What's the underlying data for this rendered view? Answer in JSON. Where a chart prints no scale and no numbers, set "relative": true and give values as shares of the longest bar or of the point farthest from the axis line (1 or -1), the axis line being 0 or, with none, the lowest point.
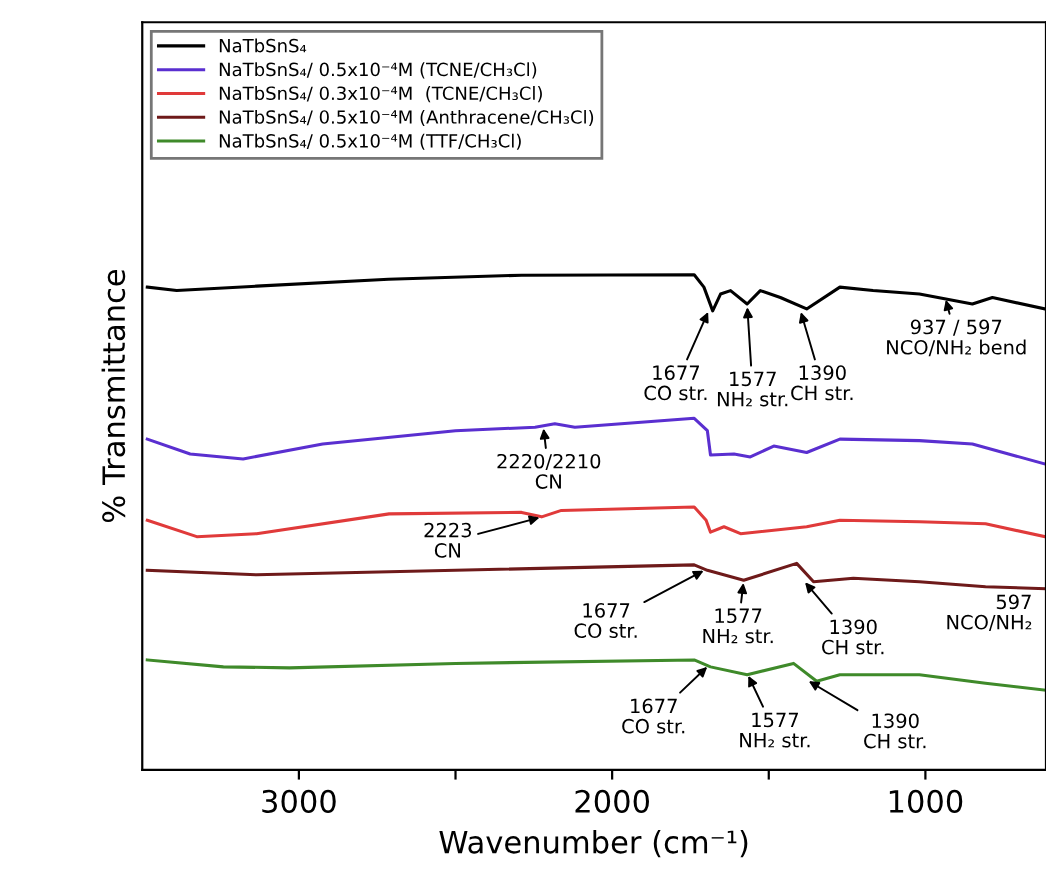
{
  "chart_data": {
    "type": "line",
    "relative": true,
    "xlabel": "Wavenumber (cm⁻¹)",
    "ylabel": "% Transmittance",
    "xlim": [
      3500,
      615
    ],
    "xticks": [
      3000,
      {
        "value": 2500,
        "label": null
      },
      2000,
      {
        "value": 1500,
        "label": null
      },
      1000
    ],
    "legend": "top left",
    "grid": false,
    "marker": "none",
    "line_style": "solid",
    "tick_labels": "x",
    "series": [
      {
        "name": "NaTbSnS₄",
        "color": "#000000",
        "x": [
          3484,
          3390,
          3135,
          2714,
          2289,
          1738,
          1707,
          1679,
          1654,
          1622,
          1569,
          1527,
          1463,
          1379,
          1273,
          1167,
          1019,
          850,
          786,
          619
        ],
        "values": [
          0.975,
          0.968,
          0.977,
          0.991,
          0.999,
          1.0,
          0.975,
          0.927,
          0.961,
          0.968,
          0.941,
          0.968,
          0.954,
          0.931,
          0.975,
          0.968,
          0.961,
          0.941,
          0.954,
          0.931
        ]
      },
      {
        "name": "NaTbSnS₄/ 0.5x10⁻⁴M (TCNE/CH₃Cl)",
        "color": "#5a2fd0",
        "x": [
          3484,
          3347,
          3178,
          2924,
          2500,
          2246,
          2183,
          2119,
          1738,
          1696,
          1686,
          1611,
          1559,
          1484,
          1379,
          1273,
          1019,
          850,
          619
        ],
        "values": [
          0.668,
          0.638,
          0.628,
          0.658,
          0.685,
          0.692,
          0.699,
          0.692,
          0.71,
          0.685,
          0.636,
          0.638,
          0.632,
          0.654,
          0.641,
          0.668,
          0.665,
          0.658,
          0.618
        ]
      },
      {
        "name": "NaTbSnS₄/ 0.3x10⁻⁴M  (TCNE/CH₃Cl)",
        "color": "#e03a3a",
        "x": [
          3484,
          3326,
          3135,
          2712,
          2289,
          2225,
          2162,
          1738,
          1700,
          1686,
          1643,
          1590,
          1379,
          1273,
          1019,
          808,
          619
        ],
        "values": [
          0.504,
          0.471,
          0.477,
          0.517,
          0.52,
          0.511,
          0.524,
          0.531,
          0.504,
          0.48,
          0.491,
          0.477,
          0.491,
          0.504,
          0.501,
          0.497,
          0.471
        ]
      },
      {
        "name": "NaTbSnS₄/ 0.5x10⁻⁴M (Anthracene/CH₃Cl)",
        "color": "#6e1a1a",
        "x": [
          3484,
          3135,
          2500,
          1738,
          1696,
          1580,
          1411,
          1357,
          1230,
          1019,
          808,
          619
        ],
        "values": [
          0.403,
          0.394,
          0.403,
          0.414,
          0.403,
          0.383,
          0.417,
          0.38,
          0.387,
          0.38,
          0.37,
          0.366
        ]
      },
      {
        "name": "NaTbSnS₄/ 0.5x10⁻⁴M (TTF/CH₃Cl)",
        "color": "#3f8a2a",
        "x": [
          3484,
          3241,
          3030,
          2500,
          1738,
          1686,
          1569,
          1421,
          1347,
          1273,
          1019,
          808,
          619
        ],
        "values": [
          0.222,
          0.208,
          0.206,
          0.215,
          0.222,
          0.208,
          0.192,
          0.215,
          0.179,
          0.192,
          0.192,
          0.175,
          0.161
        ]
      }
    ],
    "annotations": [
      {
        "text": "1677\nCO str.",
        "x": 1690,
        "y": 0.93
      },
      {
        "text": "1577\nNH₂ str.",
        "x": 1569,
        "y": 0.94
      },
      {
        "text": "1390\nCH str.",
        "x": 1400,
        "y": 0.93
      },
      {
        "text": "937 / 597\nNCO/NH₂ bend",
        "x": 937,
        "y": 0.955
      },
      {
        "text": "2220/2210\nCN",
        "x": 2220,
        "y": 0.695
      },
      {
        "text": "2223\nCN",
        "x": 2223,
        "y": 0.511
      },
      {
        "text": "1677\nCO str.",
        "x": 1700,
        "y": 0.405
      },
      {
        "text": "1577\nNH₂ str.",
        "x": 1580,
        "y": 0.383
      },
      {
        "text": "1390\nCH str.",
        "x": 1390,
        "y": 0.383
      },
      "597\nNCO/NH₂",
      {
        "text": "1677\nCO str.",
        "x": 1690,
        "y": 0.212
      },
      {
        "text": "1577\nNH₂ str.",
        "x": 1569,
        "y": 0.195
      },
      {
        "text": "1390\nCH str.",
        "x": 1380,
        "y": 0.182
      }
    ]
  }
}
